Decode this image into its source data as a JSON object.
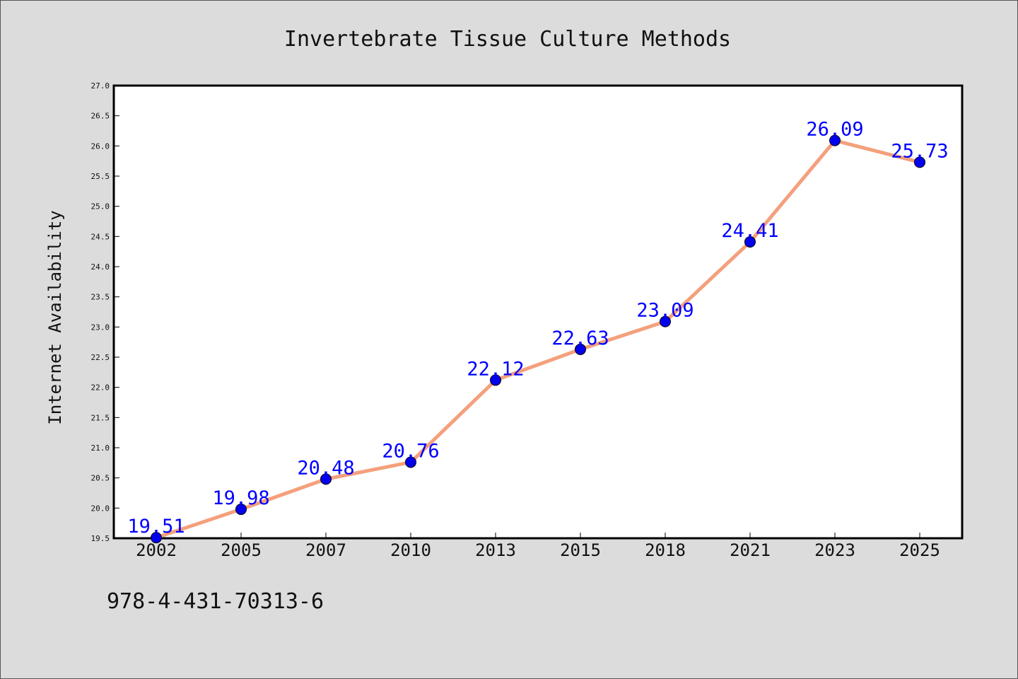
{
  "chart_data": {
    "type": "line",
    "title": "Invertebrate Tissue Culture Methods",
    "xlabel": "",
    "ylabel": "Internet Availability",
    "categories": [
      "2002",
      "2005",
      "2007",
      "2010",
      "2013",
      "2015",
      "2018",
      "2021",
      "2023",
      "2025"
    ],
    "values": [
      19.51,
      19.98,
      20.48,
      20.76,
      22.12,
      22.63,
      23.09,
      24.41,
      26.09,
      25.73
    ],
    "data_labels": [
      "19.51",
      "19.98",
      "20.48",
      "20.76",
      "22.12",
      "22.63",
      "23.09",
      "24.41",
      "26.09",
      "25.73"
    ],
    "ylim": [
      19.5,
      27.0
    ],
    "yticks": [
      "19.5",
      "20.0",
      "20.5",
      "21.0",
      "21.5",
      "22.0",
      "22.5",
      "23.0",
      "23.5",
      "24.0",
      "24.5",
      "25.0",
      "25.5",
      "26.0",
      "26.5",
      "27.0"
    ],
    "grid": false,
    "line_color": "#f4a07c",
    "marker_color": "#0000ee",
    "label_color": "#0000ff"
  },
  "footer": {
    "isbn": "978-4-431-70313-6"
  }
}
